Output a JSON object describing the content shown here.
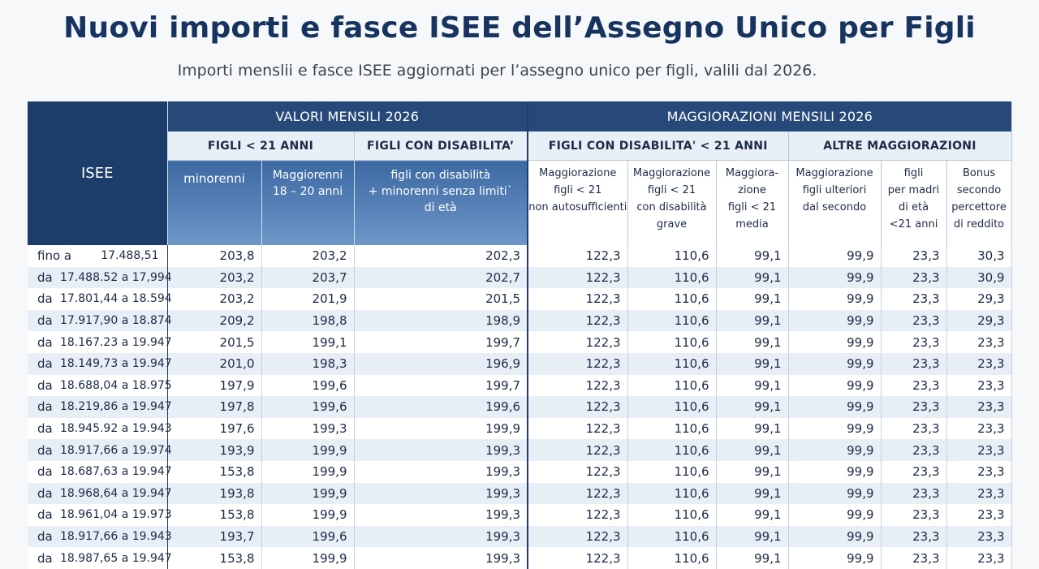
{
  "title": "Nuovi importi e fasce ISEE dell’Assegno Unico per Figli",
  "subtitle": "Importi menslii e fasce ISEE aggiornati per l’assegno unico per figli, valili dal 2026.",
  "table": {
    "isee_header": "ISEE",
    "groups": [
      "VALORI MENSILI 2026",
      "MAGGIORAZIONI MENSILI 2026"
    ],
    "subgroups": [
      "FIGLI < 21 ANNI",
      "FIGLI CON DISABILITA’",
      "FIGLI CON DISABILITA' < 21 ANNI",
      "ALTRE MAGGIORAZIONI"
    ],
    "columns": [
      "minorenni",
      "Maggiorenni\n18 – 20 anni",
      "figli con disabilità\n+ minorenni senza limiti`\ndi età",
      "Maggiorazione\nfigli < 21\nnon autosufficienti",
      "Maggiorazione\nfigli < 21\ncon disabilità\ngrave",
      "Maggiora-\nzione\nfigli < 21\nmedia",
      "Maggiorazione\nfigli ulteriori\ndal secondo",
      "figli\nper madri\ndi età\n<21 anni",
      "Bonus\nsecondo\npercettore\ndi reddito"
    ],
    "rows": [
      {
        "label": "fino a",
        "range": "17.488,51",
        "values": [
          "203,8",
          "203,2",
          "202,3",
          "122,3",
          "110,6",
          "99,1",
          "99,9",
          "23,3",
          "30,3"
        ]
      },
      {
        "label": "da",
        "range": "17.488.52 a 17,994",
        "values": [
          "203,2",
          "203,7",
          "202,7",
          "122,3",
          "110,6",
          "99,1",
          "99,9",
          "23,3",
          "30,9"
        ]
      },
      {
        "label": "da",
        "range": "17.801,44 a 18.594",
        "values": [
          "203,2",
          "201,9",
          "201,5",
          "122,3",
          "110,6",
          "99,1",
          "99,9",
          "23,3",
          "29,3"
        ]
      },
      {
        "label": "da",
        "range": "17.917,90 a 18.874",
        "values": [
          "209,2",
          "198,8",
          "198,9",
          "122,3",
          "110,6",
          "99,1",
          "99,9",
          "23,3",
          "29,3"
        ]
      },
      {
        "label": "da",
        "range": "18.167.23 a 19.947",
        "values": [
          "201,5",
          "199,1",
          "199,7",
          "122,3",
          "110,6",
          "99,1",
          "99,9",
          "23,3",
          "23,3"
        ]
      },
      {
        "label": "da",
        "range": "18.149,73 a 19.947",
        "values": [
          "201,0",
          "198,3",
          "196,9",
          "122,3",
          "110,6",
          "99,1",
          "99,9",
          "23,3",
          "23,3"
        ]
      },
      {
        "label": "da",
        "range": "18.688,04 a 18.975",
        "values": [
          "197,9",
          "199,6",
          "199,7",
          "122,3",
          "110,6",
          "99,1",
          "99,9",
          "23,3",
          "23,3"
        ]
      },
      {
        "label": "da",
        "range": "18.219,86 a 19.947",
        "values": [
          "197,8",
          "199,6",
          "199,6",
          "122,3",
          "110,6",
          "99,1",
          "99,9",
          "23,3",
          "23,3"
        ]
      },
      {
        "label": "da",
        "range": "18.945.92 a 19.943",
        "values": [
          "197,6",
          "199,3",
          "199,9",
          "122,3",
          "110,6",
          "99,1",
          "99,9",
          "23,3",
          "23,3"
        ]
      },
      {
        "label": "da",
        "range": "18.917,66 a 19.974",
        "values": [
          "193,9",
          "199,9",
          "199,3",
          "122,3",
          "110,6",
          "99,1",
          "99,9",
          "23,3",
          "23,3"
        ]
      },
      {
        "label": "da",
        "range": "18.687,63 a 19.947",
        "values": [
          "153,8",
          "199,9",
          "199,3",
          "122,3",
          "110,6",
          "99,1",
          "99,9",
          "23,3",
          "23,3"
        ]
      },
      {
        "label": "da",
        "range": "18.968,64 a 19.947",
        "values": [
          "193,8",
          "199,9",
          "199,3",
          "122,3",
          "110,6",
          "99,1",
          "99,9",
          "23,3",
          "23,3"
        ]
      },
      {
        "label": "da",
        "range": "18.961,04 a 19.973",
        "values": [
          "153,8",
          "199,9",
          "199,3",
          "122,3",
          "110,6",
          "99,1",
          "99,9",
          "23,3",
          "23,3"
        ]
      },
      {
        "label": "da",
        "range": "18.917,66 a 19.943",
        "values": [
          "193,7",
          "199,6",
          "199,3",
          "122,3",
          "110,6",
          "99,1",
          "99,9",
          "23,3",
          "23,3"
        ]
      },
      {
        "label": "da",
        "range": "18.987,65 a 19.947",
        "values": [
          "153,8",
          "199,9",
          "199,3",
          "122,3",
          "110,6",
          "99,1",
          "99,9",
          "23,3",
          "23,3"
        ]
      }
    ]
  }
}
